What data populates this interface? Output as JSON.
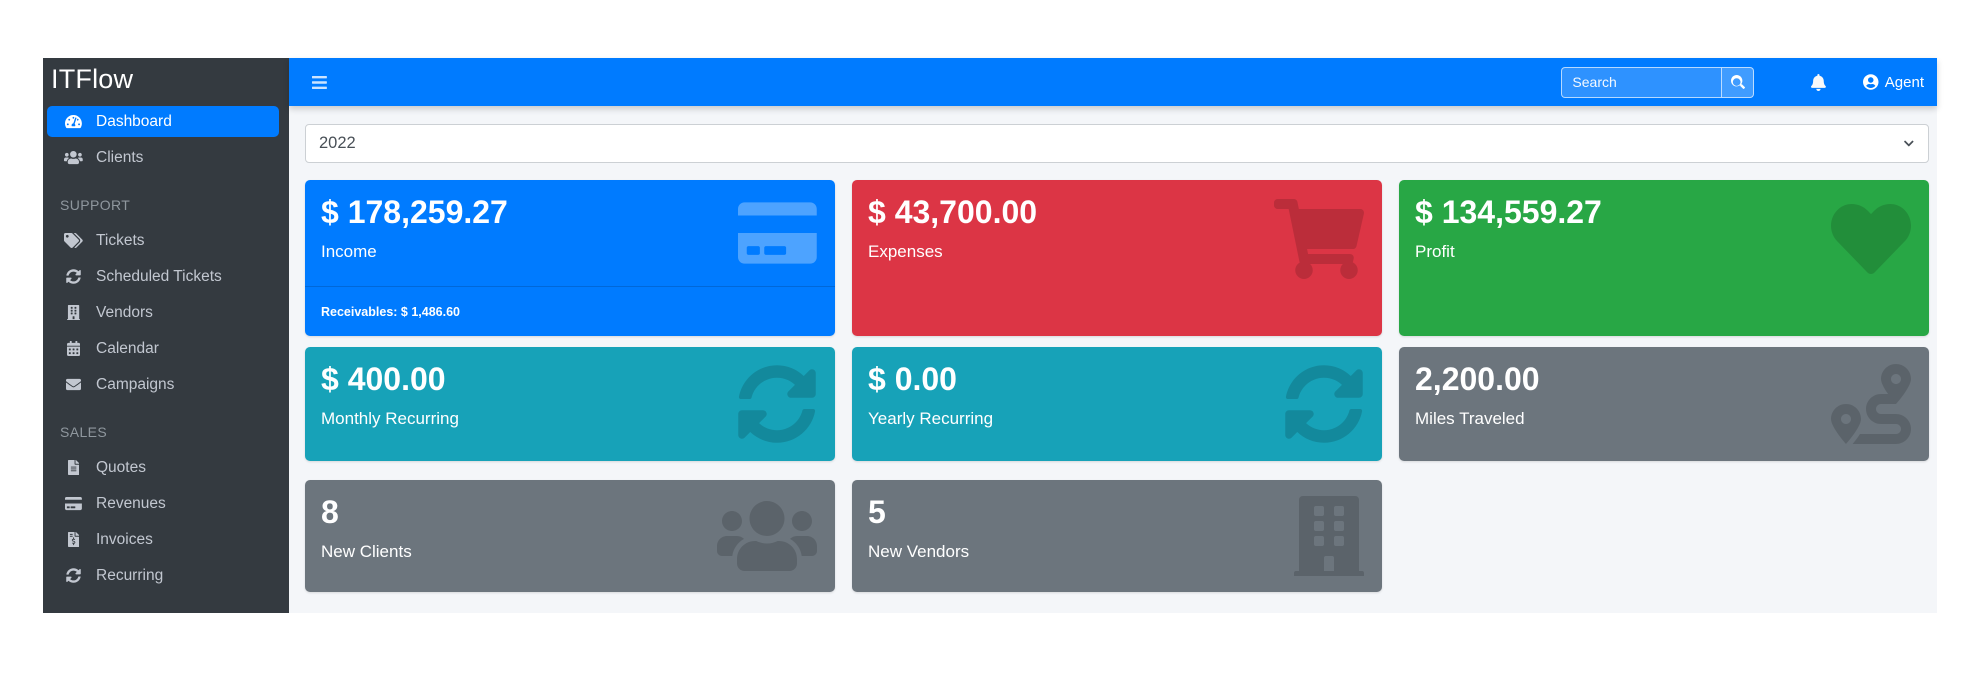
{
  "sidebar": {
    "brand": "ITFlow",
    "sections": [
      {
        "items": [
          {
            "label": "Dashboard",
            "icon": "tachometer-alt",
            "active": true
          },
          {
            "label": "Clients",
            "icon": "users",
            "active": false
          }
        ]
      },
      {
        "header": "SUPPORT",
        "items": [
          {
            "label": "Tickets",
            "icon": "tags"
          },
          {
            "label": "Scheduled Tickets",
            "icon": "sync-alt"
          },
          {
            "label": "Vendors",
            "icon": "building"
          },
          {
            "label": "Calendar",
            "icon": "calendar-alt"
          },
          {
            "label": "Campaigns",
            "icon": "envelope"
          }
        ]
      },
      {
        "header": "SALES",
        "items": [
          {
            "label": "Quotes",
            "icon": "file-alt"
          },
          {
            "label": "Revenues",
            "icon": "credit-card"
          },
          {
            "label": "Invoices",
            "icon": "file-invoice-dollar"
          },
          {
            "label": "Recurring",
            "icon": "sync-alt"
          }
        ]
      }
    ]
  },
  "navbar": {
    "menu_icon": "bars",
    "search": {
      "placeholder": "Search",
      "button_icon": "search"
    },
    "notifications_icon": "bell",
    "user": {
      "icon": "user-circle",
      "label": "Agent"
    }
  },
  "filters": {
    "year": "2022",
    "chevron_icon": "chevron-down"
  },
  "colors": {
    "primary": "#007bff",
    "danger": "#dc3545",
    "success": "#28a745",
    "info": "#17a2b8",
    "secondary": "#6c757d",
    "sidebar_bg": "#343a40",
    "content_bg": "#f4f6f9"
  },
  "cards": [
    {
      "value": "$ 178,259.27",
      "label": "Income",
      "icon": "credit-card",
      "color": "#007bff",
      "icon_tone": "light",
      "footer": "Receivables: $ 1,486.60"
    },
    {
      "value": "$ 43,700.00",
      "label": "Expenses",
      "icon": "shopping-cart",
      "color": "#dc3545",
      "icon_tone": "dark"
    },
    {
      "value": "$ 134,559.27",
      "label": "Profit",
      "icon": "heart",
      "color": "#28a745",
      "icon_tone": "dark"
    },
    {
      "value": "$ 400.00",
      "label": "Monthly Recurring",
      "icon": "sync-alt",
      "color": "#17a2b8",
      "icon_tone": "dark"
    },
    {
      "value": "$ 0.00",
      "label": "Yearly Recurring",
      "icon": "sync-alt",
      "color": "#17a2b8",
      "icon_tone": "dark"
    },
    {
      "value": "2,200.00",
      "label": "Miles Traveled",
      "icon": "route",
      "color": "#6c757d",
      "icon_tone": "dark"
    },
    {
      "value": "8",
      "label": "New Clients",
      "icon": "users",
      "color": "#6c757d",
      "icon_tone": "dark"
    },
    {
      "value": "5",
      "label": "New Vendors",
      "icon": "building",
      "color": "#6c757d",
      "icon_tone": "dark"
    }
  ]
}
